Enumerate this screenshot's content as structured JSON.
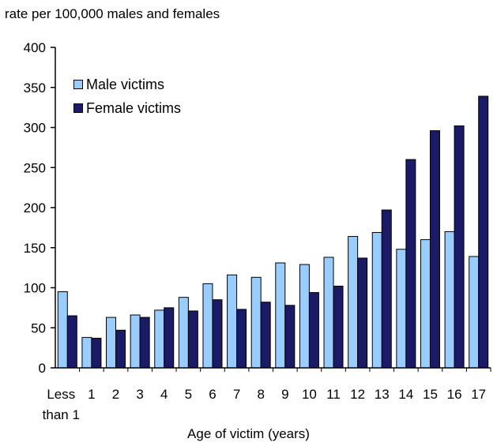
{
  "chart_data": {
    "type": "bar",
    "ylabel": "rate per 100,000 males and females",
    "xlabel": "Age of victim (years)",
    "categories": [
      "Less than 1",
      "1",
      "2",
      "3",
      "4",
      "5",
      "6",
      "7",
      "8",
      "9",
      "10",
      "11",
      "12",
      "13",
      "14",
      "15",
      "16",
      "17"
    ],
    "category_lines": [
      [
        "Less",
        "than 1"
      ],
      [
        "1"
      ],
      [
        "2"
      ],
      [
        "3"
      ],
      [
        "4"
      ],
      [
        "5"
      ],
      [
        "6"
      ],
      [
        "7"
      ],
      [
        "8"
      ],
      [
        "9"
      ],
      [
        "10"
      ],
      [
        "11"
      ],
      [
        "12"
      ],
      [
        "13"
      ],
      [
        "14"
      ],
      [
        "15"
      ],
      [
        "16"
      ],
      [
        "17"
      ]
    ],
    "series": [
      {
        "name": "Male victims",
        "color": "#99ccff",
        "values": [
          95,
          38,
          63,
          66,
          72,
          88,
          105,
          116,
          113,
          131,
          129,
          138,
          164,
          169,
          148,
          160,
          170,
          139
        ]
      },
      {
        "name": "Female victims",
        "color": "#1a1a66",
        "values": [
          65,
          37,
          47,
          63,
          75,
          71,
          85,
          73,
          82,
          78,
          94,
          102,
          137,
          197,
          260,
          296,
          302,
          339
        ]
      }
    ],
    "ylim": [
      0,
      400
    ],
    "yticks": [
      0,
      50,
      100,
      150,
      200,
      250,
      300,
      350,
      400
    ],
    "grid": false,
    "legend_position": "top-left"
  }
}
